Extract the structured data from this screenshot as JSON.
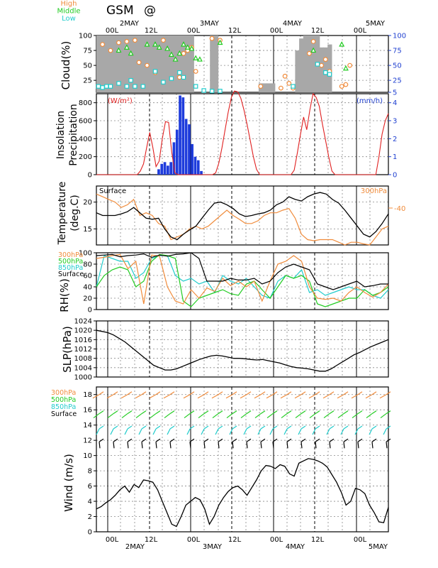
{
  "header": {
    "model": "GSM",
    "symbol": "@"
  },
  "time_axis": {
    "hour_labels": [
      "00L",
      "12L",
      "00L",
      "12L",
      "00L",
      "12L",
      "00L"
    ],
    "dates": [
      "2MAY",
      "3MAY",
      "4MAY",
      "5MAY"
    ]
  },
  "colors": {
    "high": "#f08c3c",
    "middle": "#22cc22",
    "low": "#22cccc",
    "surface": "#000000",
    "insolation": "#e02020",
    "precip": "#1e3cdc",
    "cloud_fill": "#a8a8a8",
    "axis_blue": "#2040d0"
  },
  "chart_data": [
    {
      "type": "area",
      "ylabel": "Cloud(%)",
      "ylim": [
        5,
        100
      ],
      "yticks": [
        25,
        50,
        75,
        100
      ],
      "right_yticks": [
        "5",
        "25",
        "50",
        "75",
        "100"
      ],
      "legend": [
        "High",
        "Middle",
        "Low"
      ],
      "total": [
        100,
        100,
        100,
        100,
        100,
        100,
        100,
        100,
        100,
        100,
        100,
        100,
        100,
        100,
        100,
        100,
        100,
        100,
        100,
        100,
        100,
        100,
        100,
        100,
        5,
        5,
        5,
        5,
        100,
        100,
        5,
        5,
        5,
        5,
        5,
        5,
        5,
        5,
        5,
        5,
        20,
        20,
        20,
        20,
        5,
        5,
        5,
        5,
        5,
        75,
        95,
        100,
        100,
        100,
        100,
        80,
        80,
        85,
        5,
        5,
        5,
        5,
        5,
        5,
        5,
        5,
        5,
        5,
        5,
        5,
        5,
        5
      ],
      "high": [
        {
          "x": 1,
          "y": 85
        },
        {
          "x": 3,
          "y": 75
        },
        {
          "x": 5,
          "y": 88
        },
        {
          "x": 7,
          "y": 90
        },
        {
          "x": 9,
          "y": 92
        },
        {
          "x": 10,
          "y": 55
        },
        {
          "x": 12,
          "y": 50
        },
        {
          "x": 14,
          "y": 38
        },
        {
          "x": 16,
          "y": 92
        },
        {
          "x": 20,
          "y": 30
        },
        {
          "x": 21,
          "y": 70
        },
        {
          "x": 22,
          "y": 75
        },
        {
          "x": 23,
          "y": 80
        },
        {
          "x": 24,
          "y": 40
        },
        {
          "x": 28,
          "y": 95
        },
        {
          "x": 30,
          "y": 92
        },
        {
          "x": 40,
          "y": 15
        },
        {
          "x": 45,
          "y": 12
        },
        {
          "x": 46,
          "y": 32
        },
        {
          "x": 47,
          "y": 20
        },
        {
          "x": 48,
          "y": 12
        },
        {
          "x": 52,
          "y": 70
        },
        {
          "x": 53,
          "y": 90
        },
        {
          "x": 55,
          "y": 50
        },
        {
          "x": 56,
          "y": 60
        },
        {
          "x": 57,
          "y": 40
        },
        {
          "x": 60,
          "y": 15
        },
        {
          "x": 61,
          "y": 18
        },
        {
          "x": 62,
          "y": 50
        }
      ],
      "middle": [
        {
          "x": 5,
          "y": 75
        },
        {
          "x": 7,
          "y": 80
        },
        {
          "x": 8,
          "y": 70
        },
        {
          "x": 12,
          "y": 85
        },
        {
          "x": 14,
          "y": 85
        },
        {
          "x": 15,
          "y": 80
        },
        {
          "x": 17,
          "y": 78
        },
        {
          "x": 18,
          "y": 68
        },
        {
          "x": 19,
          "y": 60
        },
        {
          "x": 20,
          "y": 70
        },
        {
          "x": 21,
          "y": 85
        },
        {
          "x": 22,
          "y": 80
        },
        {
          "x": 23,
          "y": 78
        },
        {
          "x": 24,
          "y": 62
        },
        {
          "x": 25,
          "y": 60
        },
        {
          "x": 30,
          "y": 88
        },
        {
          "x": 53,
          "y": 75
        },
        {
          "x": 60,
          "y": 85
        },
        {
          "x": 61,
          "y": 45
        }
      ],
      "low": [
        {
          "x": 0,
          "y": 15
        },
        {
          "x": 1,
          "y": 13
        },
        {
          "x": 2,
          "y": 15
        },
        {
          "x": 3,
          "y": 15
        },
        {
          "x": 5,
          "y": 20
        },
        {
          "x": 7,
          "y": 15
        },
        {
          "x": 8,
          "y": 25
        },
        {
          "x": 9,
          "y": 15
        },
        {
          "x": 11,
          "y": 15
        },
        {
          "x": 14,
          "y": 40
        },
        {
          "x": 16,
          "y": 22
        },
        {
          "x": 18,
          "y": 28
        },
        {
          "x": 20,
          "y": 38
        },
        {
          "x": 21,
          "y": 30
        },
        {
          "x": 24,
          "y": 15
        },
        {
          "x": 26,
          "y": 8
        },
        {
          "x": 28,
          "y": 7
        },
        {
          "x": 30,
          "y": 7
        },
        {
          "x": 48,
          "y": 15
        },
        {
          "x": 54,
          "y": 52
        },
        {
          "x": 56,
          "y": 38
        },
        {
          "x": 57,
          "y": 35
        }
      ]
    },
    {
      "type": "bar",
      "ylabel": "Insolation Precipitation",
      "left_unit": "(W/m²)",
      "right_unit": "(mm/h)",
      "ylim": [
        0,
        900
      ],
      "yticks": [
        0,
        200,
        400,
        600,
        800
      ],
      "right_yticks": [
        0,
        1,
        2,
        3,
        4
      ],
      "right_ylim": [
        0,
        4.5
      ],
      "insolation": [
        0,
        0,
        0,
        0,
        0,
        0,
        0,
        0,
        0,
        0,
        0,
        0,
        0,
        0,
        40,
        120,
        300,
        470,
        300,
        90,
        150,
        400,
        590,
        580,
        250,
        20,
        0,
        0,
        0,
        0,
        0,
        0,
        0,
        0,
        0,
        0,
        0,
        0,
        20,
        130,
        300,
        500,
        700,
        860,
        930,
        920,
        850,
        720,
        560,
        380,
        200,
        60,
        0,
        0,
        0,
        0,
        0,
        0,
        0,
        0,
        0,
        0,
        0,
        50,
        240,
        450,
        640,
        500,
        720,
        900,
        860,
        760,
        560,
        380,
        200,
        40,
        0,
        0,
        0,
        0,
        0,
        0,
        0,
        0,
        0,
        0,
        0,
        0,
        0,
        0,
        200,
        450,
        600,
        680
      ],
      "precip": [
        0,
        0,
        0,
        0,
        0,
        0,
        0,
        0,
        0,
        0,
        0,
        0,
        0,
        0,
        0,
        0,
        0,
        0,
        0,
        0,
        0.3,
        0.6,
        0.7,
        0.5,
        0.7,
        1.8,
        2.5,
        4.4,
        4.3,
        3.1,
        2.8,
        1.7,
        1.0,
        0.8,
        0.2,
        0,
        0,
        0,
        0,
        0,
        0,
        0,
        0,
        0,
        0,
        0,
        0,
        0,
        0,
        0,
        0,
        0,
        0,
        0,
        0,
        0,
        0,
        0,
        0,
        0,
        0,
        0,
        0,
        0,
        0,
        0,
        0,
        0,
        0,
        0,
        0,
        0,
        0,
        0,
        0,
        0,
        0,
        0,
        0,
        0,
        0,
        0,
        0,
        0,
        0,
        0,
        0,
        0,
        0,
        0,
        0,
        0,
        0,
        0,
        0,
        0
      ]
    },
    {
      "type": "line",
      "ylabel": "Temperature (deg.C)",
      "ylim": [
        12,
        23
      ],
      "yticks": [
        15,
        20
      ],
      "series_labels": [
        "Surface",
        "300hPa"
      ],
      "right_tick": "-40",
      "surface": [
        18.0,
        17.5,
        17.5,
        17.5,
        17.8,
        18.2,
        19.0,
        18.0,
        17.0,
        16.8,
        17.0,
        15.0,
        13.5,
        13.0,
        14.0,
        14.8,
        15.5,
        17.0,
        18.5,
        19.8,
        20.0,
        19.5,
        18.8,
        17.8,
        17.3,
        17.5,
        17.8,
        18.0,
        18.5,
        19.5,
        20.0,
        21.0,
        20.5,
        20.2,
        21.0,
        21.5,
        21.8,
        21.5,
        20.5,
        19.8,
        18.5,
        17.0,
        15.5,
        14.0,
        13.5,
        14.5,
        16.0,
        17.8
      ],
      "upper300": [
        21.5,
        21.0,
        20.5,
        20.0,
        19.0,
        19.5,
        20.5,
        17.5,
        18.0,
        17.5,
        16.0,
        15.5,
        13.0,
        13.5,
        14.0,
        15.0,
        15.5,
        15.0,
        15.5,
        16.5,
        17.5,
        18.5,
        17.5,
        16.8,
        16.0,
        16.0,
        16.5,
        17.5,
        18.0,
        18.0,
        18.5,
        18.8,
        17.0,
        14.0,
        13.0,
        12.8,
        13.0,
        13.0,
        13.0,
        12.5,
        12.0,
        12.5,
        12.5,
        12.2,
        12.0,
        13.5,
        15.0,
        15.5
      ]
    },
    {
      "type": "line",
      "ylabel": "RH(%)",
      "ylim": [
        0,
        100
      ],
      "yticks": [
        0,
        20,
        40,
        60,
        80,
        100
      ],
      "series_labels": [
        "300hPa",
        "500hPa",
        "850hPa",
        "Surface"
      ],
      "s300": [
        90,
        92,
        95,
        97,
        72,
        85,
        10,
        96,
        94,
        40,
        15,
        10,
        35,
        20,
        38,
        32,
        55,
        42,
        50,
        40,
        50,
        15,
        50,
        80,
        85,
        95,
        85,
        40,
        20,
        18,
        20,
        15,
        30,
        40,
        30,
        22,
        30,
        45
      ],
      "s500": [
        40,
        60,
        70,
        75,
        70,
        40,
        50,
        85,
        97,
        95,
        90,
        15,
        5,
        20,
        25,
        30,
        35,
        28,
        25,
        45,
        50,
        35,
        20,
        40,
        60,
        55,
        60,
        50,
        10,
        5,
        10,
        15,
        20,
        20,
        35,
        25,
        30,
        40
      ],
      "s850": [
        40,
        95,
        90,
        85,
        85,
        55,
        65,
        90,
        95,
        95,
        60,
        50,
        55,
        45,
        50,
        30,
        60,
        50,
        45,
        55,
        40,
        25,
        20,
        50,
        60,
        55,
        70,
        30,
        35,
        25,
        30,
        35,
        40,
        35,
        35,
        25,
        20,
        35
      ],
      "surface": [
        95,
        96,
        97,
        93,
        95,
        96,
        98,
        92,
        96,
        94,
        97,
        98,
        100,
        90,
        50,
        50,
        50,
        55,
        52,
        52,
        55,
        45,
        50,
        65,
        75,
        80,
        75,
        70,
        45,
        40,
        35,
        40,
        45,
        50,
        40,
        42,
        45,
        45
      ]
    },
    {
      "type": "line",
      "ylabel": "SLP(hPa)",
      "ylim": [
        1000,
        1024
      ],
      "yticks": [
        1000,
        1004,
        1008,
        1012,
        1016,
        1020,
        1024
      ],
      "values": [
        1020.0,
        1019.5,
        1019.0,
        1018.0,
        1016.5,
        1015.0,
        1013.0,
        1011.0,
        1009.0,
        1007.0,
        1005.0,
        1004.0,
        1003.0,
        1003.0,
        1003.5,
        1004.5,
        1005.5,
        1006.5,
        1007.5,
        1008.3,
        1009.0,
        1009.3,
        1009.0,
        1008.5,
        1008.0,
        1008.0,
        1007.8,
        1007.5,
        1007.3,
        1007.5,
        1007.0,
        1006.5,
        1006.0,
        1005.2,
        1004.5,
        1004.0,
        1003.8,
        1003.5,
        1003.0,
        1002.5,
        1002.5,
        1003.5,
        1005.0,
        1006.5,
        1008.0,
        1009.5,
        1010.5,
        1011.8,
        1013.0,
        1014.0,
        1015.0,
        1016.0
      ]
    },
    {
      "type": "line",
      "ylabel": "Wind (m/s)",
      "ylim": [
        0,
        19
      ],
      "yticks": [
        0,
        2,
        4,
        6,
        8,
        10,
        12,
        14,
        16,
        18
      ],
      "series_labels": [
        "300hPa",
        "500hPa",
        "850hPa",
        "Surface"
      ],
      "surface_speed": [
        3.0,
        3.3,
        3.8,
        4.2,
        4.8,
        5.5,
        6.0,
        5.2,
        6.2,
        5.8,
        6.8,
        6.7,
        6.5,
        5.5,
        4.0,
        2.5,
        1.0,
        0.7,
        2.0,
        3.5,
        4.0,
        4.5,
        4.2,
        3.0,
        1.0,
        2.0,
        3.5,
        4.5,
        5.3,
        5.8,
        6.0,
        5.5,
        4.8,
        5.8,
        6.8,
        8.0,
        8.7,
        8.6,
        8.3,
        8.8,
        8.6,
        7.6,
        7.3,
        9.0,
        9.3,
        9.6,
        9.5,
        9.3,
        9.0,
        8.5,
        7.5,
        6.5,
        5.2,
        3.5,
        4.0,
        5.7,
        5.5,
        5.0,
        3.5,
        2.5,
        1.3,
        1.2,
        3.2
      ]
    }
  ]
}
